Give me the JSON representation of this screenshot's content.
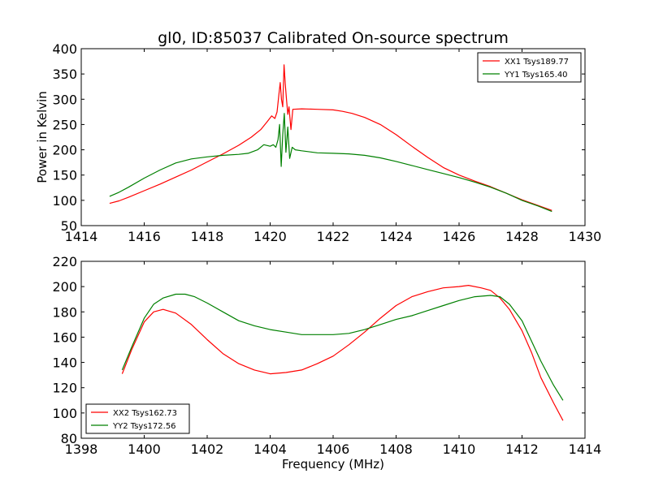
{
  "figure": {
    "title": "gl0, ID:85037 Calibrated On-source spectrum",
    "xlabel": "Frequency (MHz)"
  },
  "chart_data": [
    {
      "type": "line",
      "ylabel": "Power in Kelvin",
      "xlim": [
        1414,
        1430
      ],
      "ylim": [
        50,
        400
      ],
      "xticks": [
        1414,
        1416,
        1418,
        1420,
        1422,
        1424,
        1426,
        1428,
        1430
      ],
      "yticks": [
        50,
        100,
        150,
        200,
        250,
        300,
        350,
        400
      ],
      "legend_position": "top-right",
      "series": [
        {
          "name": "XX1 Tsys189.77",
          "color": "#ff0000",
          "points": [
            [
              1414.9,
              94
            ],
            [
              1415.2,
              99
            ],
            [
              1415.5,
              106
            ],
            [
              1416.0,
              119
            ],
            [
              1416.5,
              132
            ],
            [
              1417.0,
              146
            ],
            [
              1417.5,
              160
            ],
            [
              1418.0,
              176
            ],
            [
              1418.5,
              192
            ],
            [
              1419.0,
              209
            ],
            [
              1419.4,
              225
            ],
            [
              1419.7,
              240
            ],
            [
              1419.9,
              255
            ],
            [
              1420.05,
              267
            ],
            [
              1420.15,
              262
            ],
            [
              1420.22,
              275
            ],
            [
              1420.28,
              310
            ],
            [
              1420.32,
              333
            ],
            [
              1420.36,
              300
            ],
            [
              1420.4,
              285
            ],
            [
              1420.44,
              368
            ],
            [
              1420.48,
              330
            ],
            [
              1420.52,
              300
            ],
            [
              1420.56,
              270
            ],
            [
              1420.6,
              285
            ],
            [
              1420.66,
              240
            ],
            [
              1420.72,
              280
            ],
            [
              1421.0,
              281
            ],
            [
              1421.5,
              280
            ],
            [
              1422.0,
              279
            ],
            [
              1422.3,
              276
            ],
            [
              1422.6,
              272
            ],
            [
              1423.0,
              264
            ],
            [
              1423.5,
              250
            ],
            [
              1424.0,
              230
            ],
            [
              1424.5,
              207
            ],
            [
              1425.0,
              185
            ],
            [
              1425.5,
              165
            ],
            [
              1426.0,
              150
            ],
            [
              1426.5,
              138
            ],
            [
              1427.0,
              127
            ],
            [
              1427.5,
              114
            ],
            [
              1428.0,
              101
            ],
            [
              1428.5,
              90
            ],
            [
              1428.95,
              80
            ]
          ]
        },
        {
          "name": "YY1 Tsys165.40",
          "color": "#008000",
          "points": [
            [
              1414.9,
              108
            ],
            [
              1415.2,
              116
            ],
            [
              1415.5,
              126
            ],
            [
              1416.0,
              144
            ],
            [
              1416.5,
              160
            ],
            [
              1417.0,
              174
            ],
            [
              1417.5,
              182
            ],
            [
              1418.0,
              186
            ],
            [
              1418.5,
              189
            ],
            [
              1419.0,
              191
            ],
            [
              1419.3,
              193
            ],
            [
              1419.6,
              200
            ],
            [
              1419.8,
              210
            ],
            [
              1420.0,
              207
            ],
            [
              1420.1,
              210
            ],
            [
              1420.18,
              205
            ],
            [
              1420.25,
              220
            ],
            [
              1420.3,
              250
            ],
            [
              1420.35,
              167
            ],
            [
              1420.4,
              230
            ],
            [
              1420.45,
              272
            ],
            [
              1420.5,
              195
            ],
            [
              1420.56,
              245
            ],
            [
              1420.62,
              183
            ],
            [
              1420.7,
              205
            ],
            [
              1420.8,
              200
            ],
            [
              1421.0,
              198
            ],
            [
              1421.5,
              194
            ],
            [
              1422.0,
              193
            ],
            [
              1422.5,
              192
            ],
            [
              1423.0,
              189
            ],
            [
              1423.5,
              184
            ],
            [
              1424.0,
              177
            ],
            [
              1424.5,
              169
            ],
            [
              1425.0,
              161
            ],
            [
              1425.5,
              153
            ],
            [
              1426.0,
              145
            ],
            [
              1426.5,
              136
            ],
            [
              1427.0,
              126
            ],
            [
              1427.5,
              114
            ],
            [
              1428.0,
              100
            ],
            [
              1428.5,
              89
            ],
            [
              1428.95,
              78
            ]
          ]
        }
      ]
    },
    {
      "type": "line",
      "xlabel": "Frequency (MHz)",
      "xlim": [
        1398,
        1414
      ],
      "ylim": [
        80,
        220
      ],
      "xticks": [
        1398,
        1400,
        1402,
        1404,
        1406,
        1408,
        1410,
        1412,
        1414
      ],
      "yticks": [
        80,
        100,
        120,
        140,
        160,
        180,
        200,
        220
      ],
      "legend_position": "bottom-left",
      "series": [
        {
          "name": "XX2 Tsys162.73",
          "color": "#ff0000",
          "points": [
            [
              1399.3,
              131
            ],
            [
              1399.6,
              150
            ],
            [
              1400.0,
              172
            ],
            [
              1400.3,
              180
            ],
            [
              1400.6,
              182
            ],
            [
              1401.0,
              179
            ],
            [
              1401.5,
              170
            ],
            [
              1402.0,
              158
            ],
            [
              1402.5,
              147
            ],
            [
              1403.0,
              139
            ],
            [
              1403.5,
              134
            ],
            [
              1404.0,
              131
            ],
            [
              1404.5,
              132
            ],
            [
              1405.0,
              134
            ],
            [
              1405.5,
              139
            ],
            [
              1406.0,
              145
            ],
            [
              1406.5,
              154
            ],
            [
              1407.0,
              164
            ],
            [
              1407.5,
              175
            ],
            [
              1408.0,
              185
            ],
            [
              1408.5,
              192
            ],
            [
              1409.0,
              196
            ],
            [
              1409.5,
              199
            ],
            [
              1410.0,
              200
            ],
            [
              1410.3,
              201
            ],
            [
              1410.7,
              199
            ],
            [
              1411.0,
              197
            ],
            [
              1411.3,
              191
            ],
            [
              1411.6,
              182
            ],
            [
              1412.0,
              165
            ],
            [
              1412.3,
              148
            ],
            [
              1412.6,
              128
            ],
            [
              1413.0,
              108
            ],
            [
              1413.3,
              94
            ]
          ]
        },
        {
          "name": "YY2 Tsys172.56",
          "color": "#008000",
          "points": [
            [
              1399.3,
              134
            ],
            [
              1399.6,
              152
            ],
            [
              1400.0,
              175
            ],
            [
              1400.3,
              186
            ],
            [
              1400.6,
              191
            ],
            [
              1401.0,
              194
            ],
            [
              1401.3,
              194
            ],
            [
              1401.6,
              192
            ],
            [
              1402.0,
              187
            ],
            [
              1402.5,
              180
            ],
            [
              1403.0,
              173
            ],
            [
              1403.5,
              169
            ],
            [
              1404.0,
              166
            ],
            [
              1404.5,
              164
            ],
            [
              1405.0,
              162
            ],
            [
              1405.5,
              162
            ],
            [
              1406.0,
              162
            ],
            [
              1406.5,
              163
            ],
            [
              1407.0,
              166
            ],
            [
              1407.5,
              170
            ],
            [
              1408.0,
              174
            ],
            [
              1408.5,
              177
            ],
            [
              1409.0,
              181
            ],
            [
              1409.5,
              185
            ],
            [
              1410.0,
              189
            ],
            [
              1410.5,
              192
            ],
            [
              1411.0,
              193
            ],
            [
              1411.3,
              192
            ],
            [
              1411.6,
              186
            ],
            [
              1412.0,
              173
            ],
            [
              1412.3,
              157
            ],
            [
              1412.6,
              141
            ],
            [
              1413.0,
              122
            ],
            [
              1413.3,
              110
            ]
          ]
        }
      ]
    }
  ]
}
